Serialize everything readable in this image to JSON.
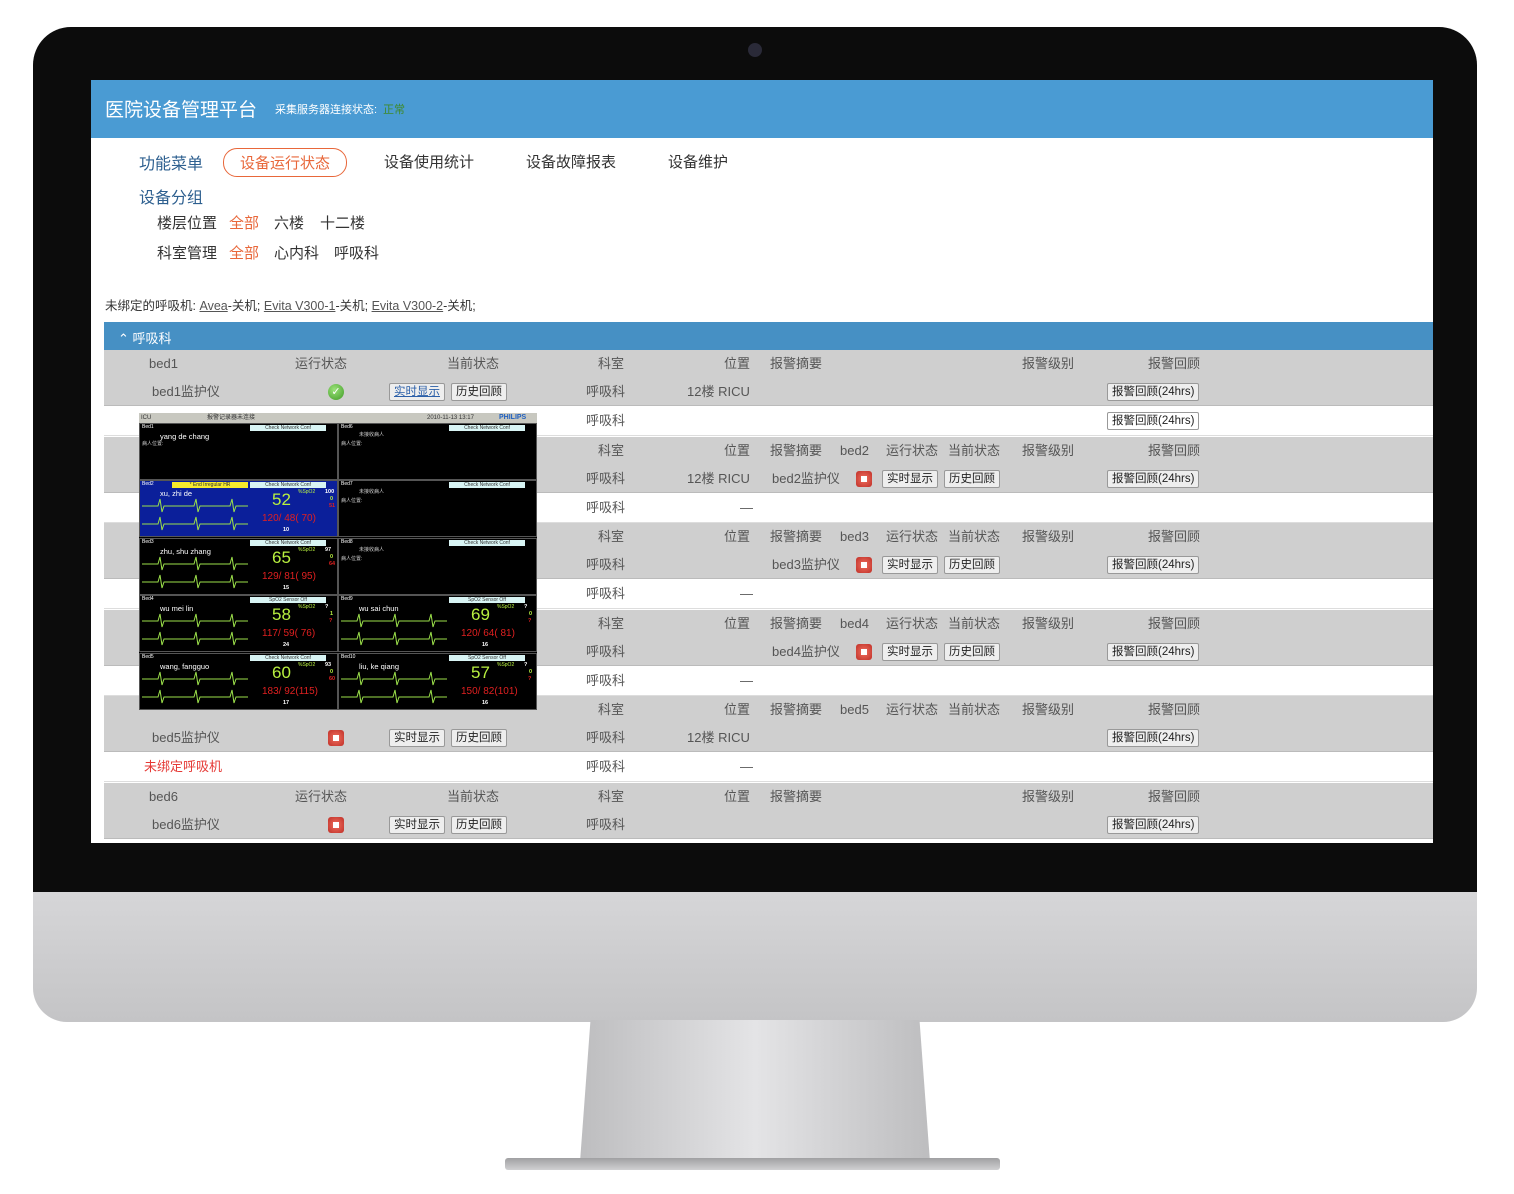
{
  "header": {
    "title": "医院设备管理平台",
    "conn_label": "采集服务器连接状态:",
    "conn_status": "正常",
    "accent": "#4a9bd3"
  },
  "menu": {
    "label": "功能菜单",
    "tabs": [
      "设备运行状态",
      "设备使用统计",
      "设备故障报表",
      "设备维护"
    ],
    "active": "设备运行状态"
  },
  "group": {
    "label": "设备分组",
    "floor_label": "楼层位置",
    "floors": [
      "全部",
      "六楼",
      "十二楼"
    ],
    "dept_label": "科室管理",
    "depts": [
      "全部",
      "心内科",
      "呼吸科"
    ]
  },
  "unbound": {
    "prefix": "未绑定的呼吸机:",
    "items": [
      {
        "name": "Avea",
        "state": "-关机;"
      },
      {
        "name": "Evita V300-1",
        "state": "-关机;"
      },
      {
        "name": "Evita V300-2",
        "state": "-关机;"
      }
    ]
  },
  "section": {
    "title": "呼吸科",
    "icon": "chevron-up-icon"
  },
  "columns": {
    "status": "运行状态",
    "current": "当前状态",
    "dept": "科室",
    "location": "位置",
    "summary": "报警摘要",
    "level": "报警级别",
    "review": "报警回顾"
  },
  "buttons": {
    "live": "实时显示",
    "history": "历史回顾",
    "review24": "报警回顾(24hrs)"
  },
  "groups": [
    {
      "bed": "bed1",
      "device": "bed1监护仪",
      "status": "ok",
      "dept": "呼吸科",
      "location": "12楼 RICU",
      "sub": {
        "label": "",
        "dept": "呼吸科",
        "location": "",
        "review": true
      }
    },
    {
      "bed": "bed2",
      "device": "bed2监护仪",
      "status": "off",
      "dept": "呼吸科",
      "location": "12楼 RICU",
      "sub": {
        "label": "",
        "dept": "呼吸科",
        "location": "—",
        "review": false
      }
    },
    {
      "bed": "bed3",
      "device": "bed3监护仪",
      "status": "off",
      "dept": "呼吸科",
      "location": "",
      "sub": {
        "label": "",
        "dept": "呼吸科",
        "location": "—",
        "review": false
      }
    },
    {
      "bed": "bed4",
      "device": "bed4监护仪",
      "status": "off",
      "dept": "呼吸科",
      "location": "",
      "sub": {
        "label": "",
        "dept": "呼吸科",
        "location": "—",
        "review": false
      }
    },
    {
      "bed": "bed5",
      "device": "bed5监护仪",
      "status": "off",
      "dept": "呼吸科",
      "location": "12楼 RICU",
      "sub": {
        "label": "未绑定呼吸机",
        "dept": "呼吸科",
        "location": "—",
        "review": false
      }
    },
    {
      "bed": "bed6",
      "device": "bed6监护仪",
      "status": "off",
      "dept": "呼吸科",
      "location": "",
      "sub": null
    }
  ],
  "monitor": {
    "unit": "ICU",
    "msg": "报警记录器未连接",
    "datetime": "2010-11-13  13:17",
    "brand": "PHILIPS",
    "empty_text": "未接收病人",
    "loc_label": "病人位置:",
    "beds": [
      {
        "bed": "Bed1",
        "name": "yang de chang",
        "alert": "Check Network Conf"
      },
      {
        "bed": "Bed6",
        "name": "",
        "alert": "Check Network Conf"
      },
      {
        "bed": "Bed2",
        "name": "xu, zhi de",
        "alert": "Check Network Conf",
        "alarm": "* End Irregular HR",
        "hr": "52",
        "spo2": "100",
        "pvc": "0",
        "pulse": "51",
        "nbp": "120/ 48( 70)",
        "resp": "10"
      },
      {
        "bed": "Bed7",
        "name": "",
        "alert": "Check Network Conf"
      },
      {
        "bed": "Bed3",
        "name": "zhu, shu zhang",
        "alert": "Check Network Conf",
        "hr": "65",
        "spo2": "97",
        "pvc": "0",
        "pulse": "64",
        "nbp": "129/ 81( 95)",
        "resp": "15"
      },
      {
        "bed": "Bed8",
        "name": "",
        "alert": "Check Network Conf"
      },
      {
        "bed": "Bed4",
        "name": "wu mei lin",
        "alert": "SpO2  Sensor Off",
        "hr": "58",
        "spo2": "?",
        "pvc": "1",
        "pulse": "?",
        "nbp": "117/ 59( 76)",
        "resp": "24"
      },
      {
        "bed": "Bed9",
        "name": "wu sai chun",
        "alert": "SpO2  Sensor Off",
        "hr": "69",
        "spo2": "?",
        "pvc": "0",
        "pulse": "?",
        "nbp": "120/ 64( 81)",
        "resp": "16"
      },
      {
        "bed": "Bed5",
        "name": "wang, fangguo",
        "alert": "Check Network Conf",
        "hr": "60",
        "spo2": "93",
        "pvc": "0",
        "pulse": "60",
        "nbp": "183/ 92(115)",
        "resp": "17"
      },
      {
        "bed": "Bed10",
        "name": "liu, ke qiang",
        "alert": "SpO2  Sensor Off",
        "hr": "57",
        "spo2": "?",
        "pvc": "0",
        "pulse": "?",
        "nbp": "150/ 82(101)",
        "resp": "16"
      }
    ]
  }
}
